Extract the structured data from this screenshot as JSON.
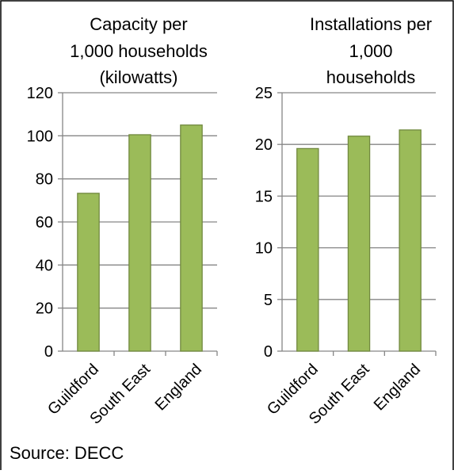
{
  "chart_data": [
    {
      "type": "bar",
      "title_lines": [
        "Capacity per",
        "1,000 households",
        "(kilowatts)"
      ],
      "categories": [
        "Guildford",
        "South East",
        "England"
      ],
      "values": [
        73.3,
        100.5,
        105
      ],
      "ylim": [
        0,
        120
      ],
      "yticks": [
        "0",
        "20",
        "40",
        "60",
        "80",
        "100",
        "120"
      ],
      "grid": true,
      "legend": "none"
    },
    {
      "type": "bar",
      "title_lines": [
        "Installations per",
        "1,000",
        "households"
      ],
      "categories": [
        "Guildford",
        "South East",
        "England"
      ],
      "values": [
        19.6,
        20.8,
        21.4
      ],
      "ylim": [
        0,
        25
      ],
      "yticks": [
        "0",
        "5",
        "10",
        "15",
        "20",
        "25"
      ],
      "grid": true,
      "legend": "none"
    }
  ],
  "source": "Source: DECC",
  "colors": {
    "bar_fill": "#9bbb59",
    "bar_edge": "#71893f",
    "axis": "#868686"
  }
}
